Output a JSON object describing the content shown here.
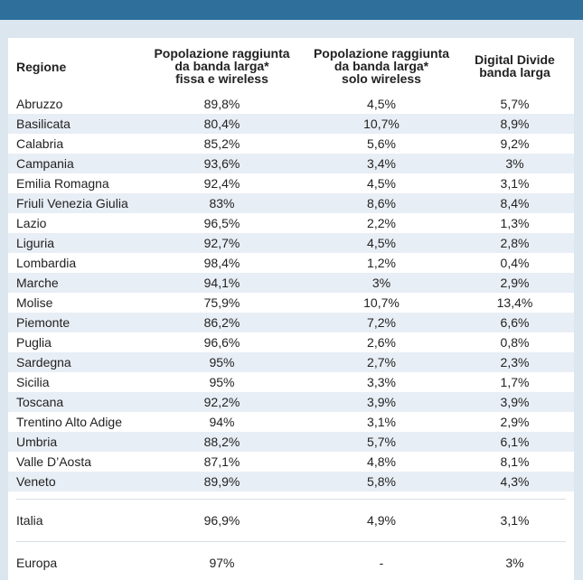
{
  "table": {
    "headers": {
      "region": "Regione",
      "col1": [
        "Popolazione raggiunta",
        "da banda larga*",
        "fissa e wireless"
      ],
      "col2": [
        "Popolazione raggiunta",
        "da banda larga*",
        "solo wireless"
      ],
      "col3": [
        "Digital Divide",
        "banda larga"
      ]
    },
    "rows": [
      [
        "Abruzzo",
        "89,8%",
        "4,5%",
        "5,7%"
      ],
      [
        "Basilicata",
        "80,4%",
        "10,7%",
        "8,9%"
      ],
      [
        "Calabria",
        "85,2%",
        "5,6%",
        "9,2%"
      ],
      [
        "Campania",
        "93,6%",
        "3,4%",
        "3%"
      ],
      [
        "Emilia Romagna",
        "92,4%",
        "4,5%",
        "3,1%"
      ],
      [
        "Friuli Venezia Giulia",
        "83%",
        "8,6%",
        "8,4%"
      ],
      [
        "Lazio",
        "96,5%",
        "2,2%",
        "1,3%"
      ],
      [
        "Liguria",
        "92,7%",
        "4,5%",
        "2,8%"
      ],
      [
        "Lombardia",
        "98,4%",
        "1,2%",
        "0,4%"
      ],
      [
        "Marche",
        "94,1%",
        "3%",
        "2,9%"
      ],
      [
        "Molise",
        "75,9%",
        "10,7%",
        "13,4%"
      ],
      [
        "Piemonte",
        "86,2%",
        "7,2%",
        "6,6%"
      ],
      [
        "Puglia",
        "96,6%",
        "2,6%",
        "0,8%"
      ],
      [
        "Sardegna",
        "95%",
        "2,7%",
        "2,3%"
      ],
      [
        "Sicilia",
        "95%",
        "3,3%",
        "1,7%"
      ],
      [
        "Toscana",
        "92,2%",
        "3,9%",
        "3,9%"
      ],
      [
        "Trentino Alto Adige",
        "94%",
        "3,1%",
        "2,9%"
      ],
      [
        "Umbria",
        "88,2%",
        "5,7%",
        "6,1%"
      ],
      [
        "Valle D’Aosta",
        "87,1%",
        "4,8%",
        "8,1%"
      ],
      [
        "Veneto",
        "89,9%",
        "5,8%",
        "4,3%"
      ]
    ],
    "italia": [
      "Italia",
      "96,9%",
      "4,9%",
      "3,1%"
    ],
    "europa": [
      "Europa",
      "97%",
      "-",
      "3%"
    ]
  },
  "colors": {
    "topbar": "#2e6f9c",
    "background": "#dce6ee",
    "row_alt": "#e8eef5",
    "row": "#ffffff"
  }
}
